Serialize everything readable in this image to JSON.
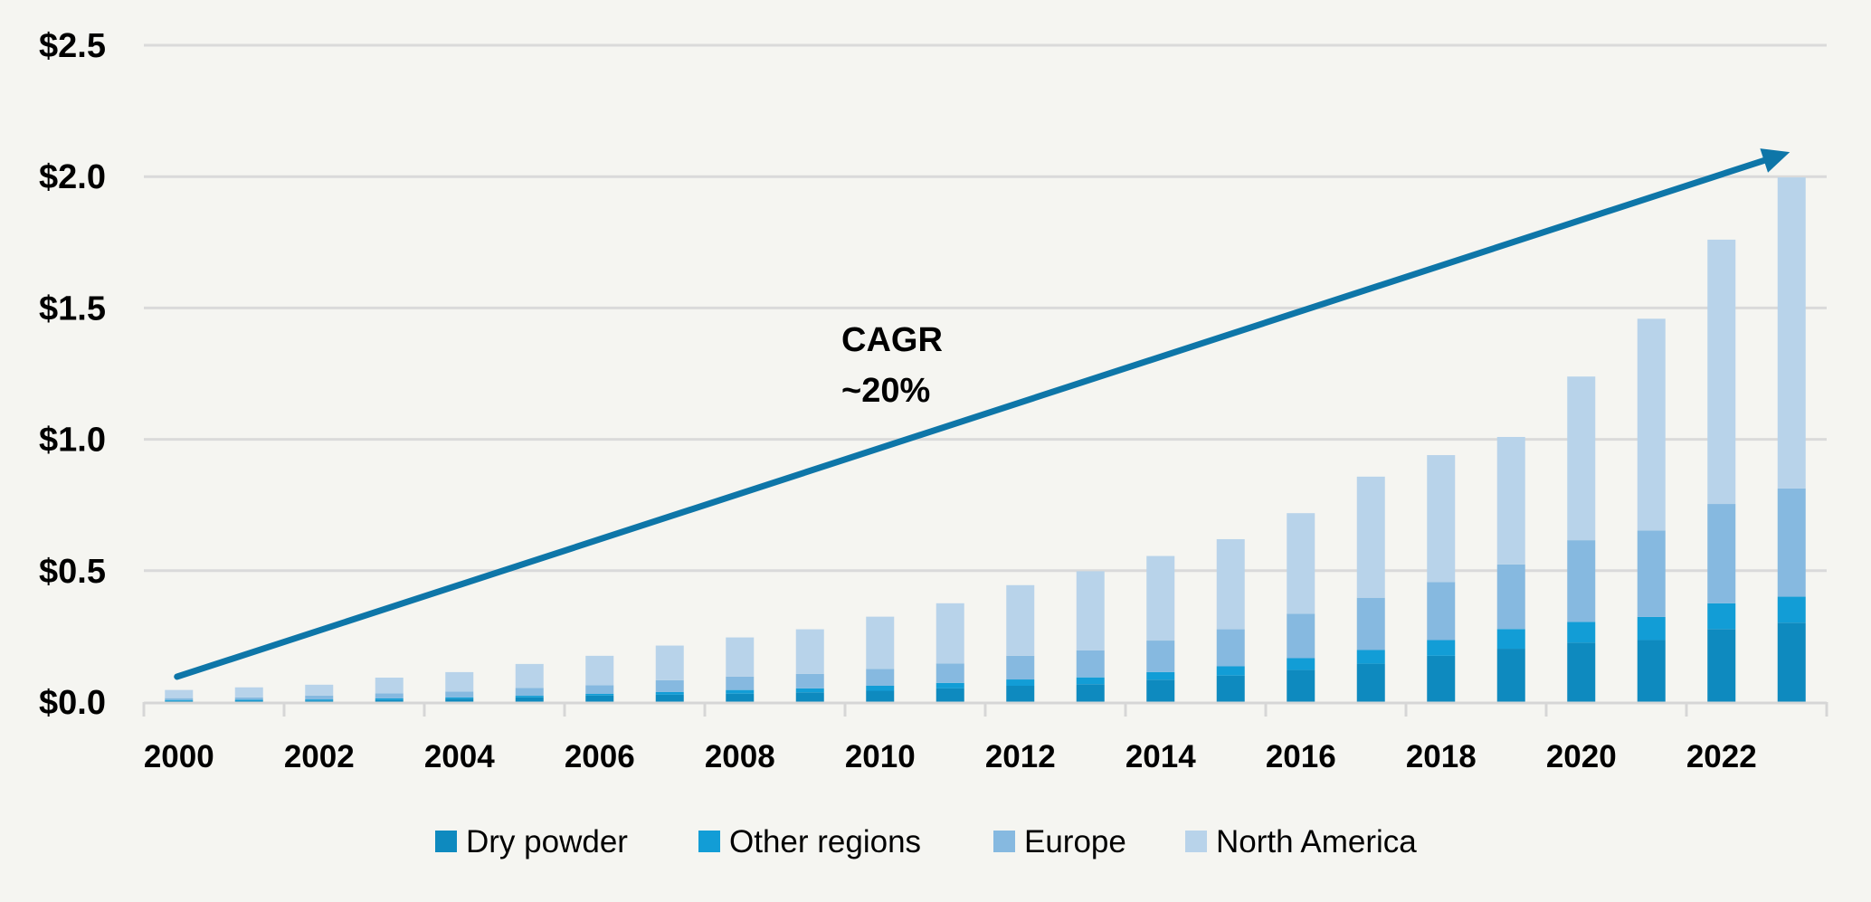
{
  "chart_data": {
    "type": "bar",
    "stacked": true,
    "title": "",
    "xlabel": "",
    "ylabel": "",
    "ylim": [
      0,
      2.5
    ],
    "yticks": [
      "$0.0",
      "$0.5",
      "$1.0",
      "$1.5",
      "$2.0",
      "$2.5"
    ],
    "ytick_values": [
      0,
      0.5,
      1.0,
      1.5,
      2.0,
      2.5
    ],
    "grid": true,
    "categories": [
      "2000",
      "2001",
      "2002",
      "2003",
      "2004",
      "2005",
      "2006",
      "2007",
      "2008",
      "2009",
      "2010",
      "2011",
      "2012",
      "2013",
      "2014",
      "2015",
      "2016",
      "2017",
      "2018",
      "2019",
      "2020",
      "2021",
      "2022",
      "2023"
    ],
    "xtick_labels": [
      "2000",
      "2002",
      "2004",
      "2006",
      "2008",
      "2010",
      "2012",
      "2014",
      "2016",
      "2018",
      "2020",
      "2022"
    ],
    "series": [
      {
        "name": "Dry powder",
        "color": "#0e8abf",
        "values": [
          0.004,
          0.005,
          0.006,
          0.008,
          0.013,
          0.018,
          0.025,
          0.028,
          0.032,
          0.037,
          0.043,
          0.052,
          0.062,
          0.068,
          0.085,
          0.101,
          0.122,
          0.146,
          0.176,
          0.203,
          0.226,
          0.236,
          0.278,
          0.302
        ]
      },
      {
        "name": "Other regions",
        "color": "#129dd6",
        "values": [
          0.004,
          0.004,
          0.004,
          0.006,
          0.005,
          0.006,
          0.006,
          0.01,
          0.014,
          0.015,
          0.019,
          0.021,
          0.024,
          0.026,
          0.029,
          0.035,
          0.045,
          0.052,
          0.06,
          0.075,
          0.079,
          0.088,
          0.098,
          0.099
        ]
      },
      {
        "name": "Europe",
        "color": "#86b9e0",
        "values": [
          0.007,
          0.009,
          0.015,
          0.019,
          0.022,
          0.03,
          0.033,
          0.045,
          0.051,
          0.055,
          0.064,
          0.074,
          0.09,
          0.103,
          0.12,
          0.141,
          0.169,
          0.199,
          0.221,
          0.246,
          0.311,
          0.329,
          0.378,
          0.412
        ]
      },
      {
        "name": "North America",
        "color": "#b8d3ea",
        "values": [
          0.031,
          0.038,
          0.041,
          0.06,
          0.074,
          0.091,
          0.112,
          0.132,
          0.149,
          0.17,
          0.199,
          0.229,
          0.269,
          0.301,
          0.322,
          0.343,
          0.383,
          0.461,
          0.483,
          0.485,
          0.623,
          0.806,
          1.006,
          1.184
        ]
      }
    ],
    "totals": [
      0.046,
      0.056,
      0.066,
      0.093,
      0.114,
      0.145,
      0.176,
      0.215,
      0.246,
      0.277,
      0.325,
      0.376,
      0.445,
      0.498,
      0.556,
      0.62,
      0.719,
      0.858,
      0.94,
      1.009,
      1.239,
      1.459,
      1.76,
      1.997
    ],
    "annotations": [
      {
        "text_lines": [
          "CAGR",
          "~20%"
        ],
        "type": "trend-arrow",
        "from_value": {
          "category": "2000",
          "y": 0.1
        },
        "to_value": {
          "category": "2023",
          "y": 2.1
        },
        "color": "#0e76a8"
      }
    ],
    "legend": {
      "placement": "bottom-center",
      "entries": [
        "Dry powder",
        "Other regions",
        "Europe",
        "North America"
      ]
    }
  }
}
